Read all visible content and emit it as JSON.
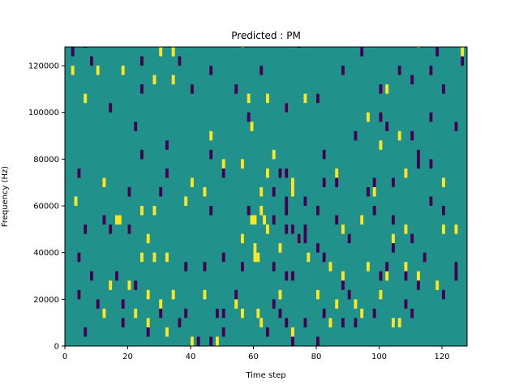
{
  "chart_data": {
    "type": "heatmap",
    "title": "Predicted : PM",
    "xlabel": "Time step",
    "ylabel": "Frequency (Hz)",
    "xlim": [
      0,
      128
    ],
    "ylim": [
      0,
      128000
    ],
    "xticks": [
      0,
      20,
      40,
      60,
      80,
      100,
      120
    ],
    "xtick_labels": [
      "0",
      "20",
      "40",
      "60",
      "80",
      "100",
      "120"
    ],
    "yticks": [
      0,
      20000,
      40000,
      60000,
      80000,
      100000,
      120000
    ],
    "ytick_labels": [
      "0",
      "20000",
      "40000",
      "60000",
      "80000",
      "100000",
      "120000"
    ],
    "colormap": "viridis",
    "background_value": 0,
    "colors": {
      "background": "#21918c",
      "low": "#440154",
      "high": "#fde725"
    },
    "cell_height_hz": 4000,
    "high_cells": [
      [
        30,
        124000
      ],
      [
        34,
        124000
      ],
      [
        56,
        128000
      ],
      [
        112,
        128000
      ],
      [
        126,
        124000
      ],
      [
        2,
        116000
      ],
      [
        10,
        116000
      ],
      [
        18,
        116000
      ],
      [
        28,
        112000
      ],
      [
        34,
        112000
      ],
      [
        102,
        108000
      ],
      [
        6,
        104000
      ],
      [
        58,
        104000
      ],
      [
        64,
        104000
      ],
      [
        70,
        100000
      ],
      [
        76,
        104000
      ],
      [
        96,
        96000
      ],
      [
        59,
        92000
      ],
      [
        46,
        88000
      ],
      [
        106,
        88000
      ],
      [
        100,
        84000
      ],
      [
        66,
        80000
      ],
      [
        50,
        76000
      ],
      [
        56,
        76000
      ],
      [
        64,
        72000
      ],
      [
        72,
        68000
      ],
      [
        86,
        72000
      ],
      [
        108,
        72000
      ],
      [
        120,
        68000
      ],
      [
        12,
        68000
      ],
      [
        40,
        68000
      ],
      [
        44,
        64000
      ],
      [
        62,
        64000
      ],
      [
        72,
        64000
      ],
      [
        98,
        64000
      ],
      [
        3,
        60000
      ],
      [
        38,
        60000
      ],
      [
        24,
        56000
      ],
      [
        28,
        56000
      ],
      [
        62,
        56000
      ],
      [
        16,
        52000
      ],
      [
        17,
        52000
      ],
      [
        59,
        52000
      ],
      [
        60,
        52000
      ],
      [
        63,
        52000
      ],
      [
        88,
        48000
      ],
      [
        94,
        52000
      ],
      [
        108,
        48000
      ],
      [
        120,
        48000
      ],
      [
        124,
        48000
      ],
      [
        26,
        44000
      ],
      [
        56,
        44000
      ],
      [
        64,
        48000
      ],
      [
        60,
        40000
      ],
      [
        74,
        44000
      ],
      [
        104,
        44000
      ],
      [
        24,
        36000
      ],
      [
        28,
        36000
      ],
      [
        32,
        36000
      ],
      [
        60,
        36000
      ],
      [
        61,
        36000
      ],
      [
        68,
        40000
      ],
      [
        77,
        36000
      ],
      [
        84,
        32000
      ],
      [
        88,
        28000
      ],
      [
        96,
        32000
      ],
      [
        102,
        28000
      ],
      [
        108,
        32000
      ],
      [
        112,
        28000
      ],
      [
        118,
        24000
      ],
      [
        14,
        24000
      ],
      [
        20,
        24000
      ],
      [
        26,
        20000
      ],
      [
        30,
        16000
      ],
      [
        34,
        20000
      ],
      [
        44,
        20000
      ],
      [
        54,
        16000
      ],
      [
        68,
        20000
      ],
      [
        80,
        20000
      ],
      [
        86,
        16000
      ],
      [
        92,
        16000
      ],
      [
        94,
        12000
      ],
      [
        100,
        20000
      ],
      [
        104,
        8000
      ],
      [
        106,
        8000
      ],
      [
        12,
        12000
      ],
      [
        22,
        12000
      ],
      [
        26,
        8000
      ],
      [
        32,
        4000
      ],
      [
        40,
        0
      ],
      [
        48,
        0
      ],
      [
        56,
        12000
      ],
      [
        61,
        12000
      ],
      [
        62,
        8000
      ],
      [
        72,
        4000
      ],
      [
        84,
        8000
      ]
    ],
    "low_cells": [
      [
        6,
        128000
      ],
      [
        74,
        128000
      ],
      [
        94,
        124000
      ],
      [
        118,
        124000
      ],
      [
        126,
        120000
      ],
      [
        2,
        124000
      ],
      [
        8,
        120000
      ],
      [
        24,
        120000
      ],
      [
        36,
        120000
      ],
      [
        46,
        116000
      ],
      [
        62,
        116000
      ],
      [
        88,
        116000
      ],
      [
        106,
        116000
      ],
      [
        116,
        116000
      ],
      [
        24,
        108000
      ],
      [
        40,
        108000
      ],
      [
        54,
        108000
      ],
      [
        110,
        112000
      ],
      [
        70,
        100000
      ],
      [
        80,
        104000
      ],
      [
        100,
        108000
      ],
      [
        120,
        108000
      ],
      [
        14,
        100000
      ],
      [
        116,
        96000
      ],
      [
        22,
        92000
      ],
      [
        58,
        96000
      ],
      [
        100,
        96000
      ],
      [
        124,
        92000
      ],
      [
        110,
        88000
      ],
      [
        32,
        84000
      ],
      [
        92,
        88000
      ],
      [
        102,
        92000
      ],
      [
        24,
        80000
      ],
      [
        46,
        80000
      ],
      [
        82,
        80000
      ],
      [
        112,
        80000
      ],
      [
        112,
        76000
      ],
      [
        116,
        76000
      ],
      [
        32,
        72000
      ],
      [
        50,
        72000
      ],
      [
        68,
        72000
      ],
      [
        70,
        72000
      ],
      [
        82,
        68000
      ],
      [
        86,
        68000
      ],
      [
        98,
        68000
      ],
      [
        104,
        68000
      ],
      [
        4,
        72000
      ],
      [
        20,
        64000
      ],
      [
        30,
        64000
      ],
      [
        66,
        64000
      ],
      [
        70,
        60000
      ],
      [
        76,
        60000
      ],
      [
        96,
        64000
      ],
      [
        116,
        60000
      ],
      [
        120,
        56000
      ],
      [
        46,
        56000
      ],
      [
        58,
        56000
      ],
      [
        66,
        52000
      ],
      [
        70,
        56000
      ],
      [
        80,
        56000
      ],
      [
        86,
        52000
      ],
      [
        98,
        56000
      ],
      [
        104,
        52000
      ],
      [
        6,
        48000
      ],
      [
        12,
        52000
      ],
      [
        14,
        48000
      ],
      [
        20,
        48000
      ],
      [
        70,
        48000
      ],
      [
        72,
        48000
      ],
      [
        74,
        44000
      ],
      [
        76,
        44000
      ],
      [
        76,
        48000
      ],
      [
        80,
        40000
      ],
      [
        82,
        36000
      ],
      [
        90,
        44000
      ],
      [
        104,
        40000
      ],
      [
        110,
        44000
      ],
      [
        114,
        36000
      ],
      [
        124,
        32000
      ],
      [
        124,
        28000
      ],
      [
        4,
        36000
      ],
      [
        8,
        28000
      ],
      [
        16,
        28000
      ],
      [
        22,
        24000
      ],
      [
        38,
        32000
      ],
      [
        44,
        32000
      ],
      [
        50,
        36000
      ],
      [
        56,
        32000
      ],
      [
        66,
        32000
      ],
      [
        70,
        28000
      ],
      [
        72,
        28000
      ],
      [
        88,
        24000
      ],
      [
        90,
        20000
      ],
      [
        100,
        28000
      ],
      [
        102,
        32000
      ],
      [
        108,
        28000
      ],
      [
        112,
        24000
      ],
      [
        120,
        20000
      ],
      [
        4,
        20000
      ],
      [
        10,
        16000
      ],
      [
        18,
        16000
      ],
      [
        30,
        12000
      ],
      [
        38,
        12000
      ],
      [
        48,
        12000
      ],
      [
        50,
        12000
      ],
      [
        54,
        20000
      ],
      [
        66,
        16000
      ],
      [
        68,
        12000
      ],
      [
        70,
        8000
      ],
      [
        76,
        8000
      ],
      [
        82,
        12000
      ],
      [
        92,
        8000
      ],
      [
        98,
        12000
      ],
      [
        108,
        16000
      ],
      [
        110,
        12000
      ],
      [
        6,
        4000
      ],
      [
        18,
        8000
      ],
      [
        26,
        4000
      ],
      [
        36,
        8000
      ],
      [
        42,
        0
      ],
      [
        46,
        0
      ],
      [
        50,
        4000
      ],
      [
        64,
        4000
      ],
      [
        72,
        0
      ],
      [
        80,
        0
      ],
      [
        88,
        8000
      ]
    ]
  }
}
